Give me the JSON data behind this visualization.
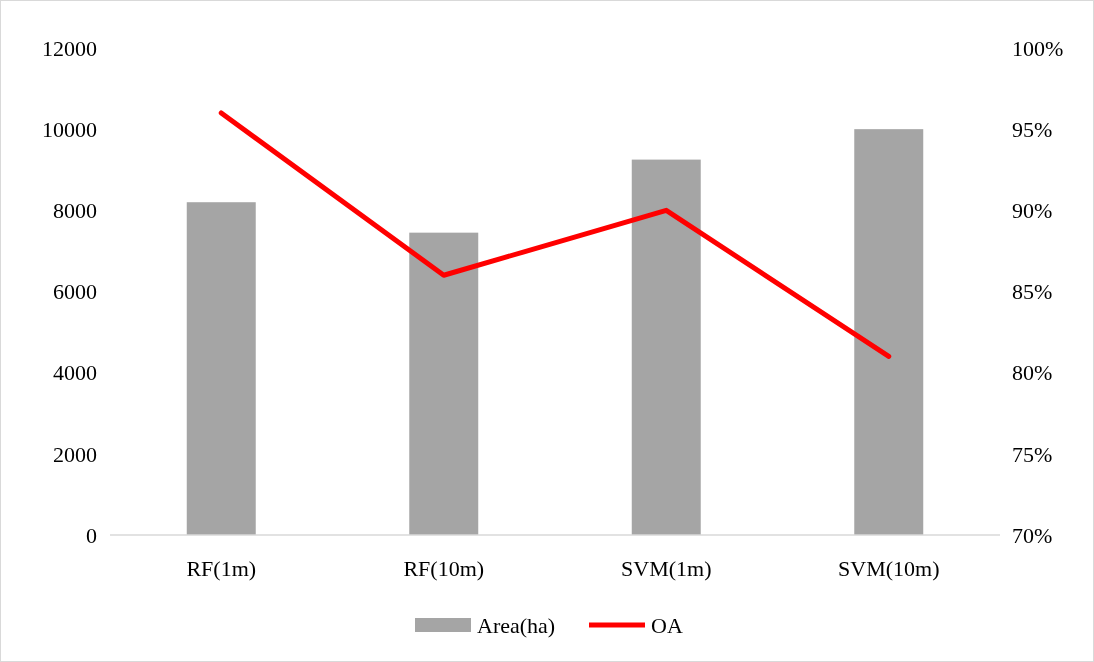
{
  "chart_data": {
    "type": "bar",
    "categories": [
      "RF(1m)",
      "RF(10m)",
      "SVM(1m)",
      "SVM(10m)"
    ],
    "series": [
      {
        "name": "Area(ha)",
        "color": "#a5a5a5",
        "values": [
          8200,
          7450,
          9250,
          10000
        ]
      },
      {
        "name": "OA",
        "type": "line",
        "axis": "y2",
        "color": "#ff0000",
        "values": [
          96,
          86,
          90,
          81
        ]
      }
    ],
    "ylim": [
      0,
      12000
    ],
    "yticks": [
      0,
      2000,
      4000,
      6000,
      8000,
      10000,
      12000
    ],
    "y2lim": [
      70,
      100
    ],
    "y2ticks": [
      {
        "value": 70,
        "label": "70%"
      },
      {
        "value": 75,
        "label": "75%"
      },
      {
        "value": 80,
        "label": "80%"
      },
      {
        "value": 85,
        "label": "85%"
      },
      {
        "value": 90,
        "label": "90%"
      },
      {
        "value": 95,
        "label": "95%"
      },
      {
        "value": 100,
        "label": "100%"
      }
    ],
    "grid": false,
    "legend": "bottom",
    "marker": "none",
    "line_style": "solid"
  }
}
